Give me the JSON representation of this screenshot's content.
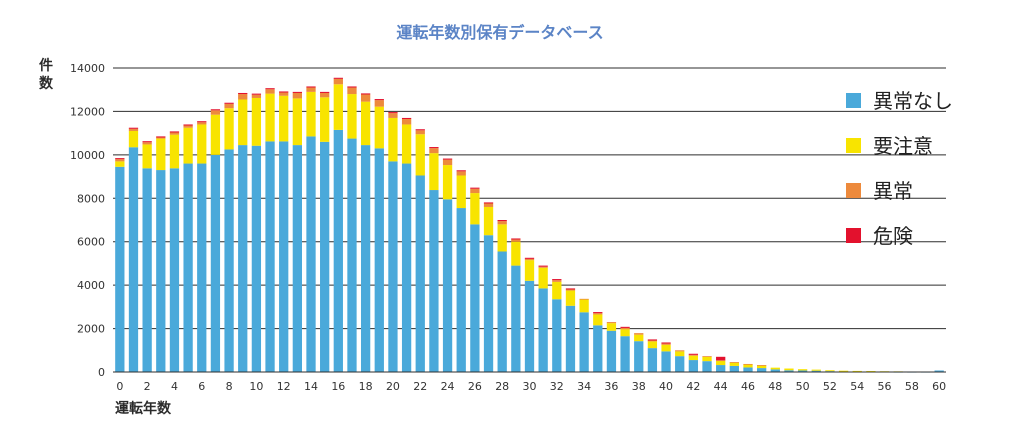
{
  "chart_data": {
    "type": "bar",
    "stacked": true,
    "title": "運転年数別保有データベース",
    "xlabel": "運転年数",
    "ylabel": "件数",
    "ylim": [
      0,
      14000
    ],
    "y_ticks": [
      0,
      2000,
      4000,
      6000,
      8000,
      10000,
      12000,
      14000
    ],
    "x_tick_labels": [
      0,
      2,
      4,
      6,
      8,
      10,
      12,
      14,
      16,
      18,
      20,
      22,
      24,
      26,
      28,
      30,
      32,
      34,
      36,
      38,
      40,
      42,
      44,
      46,
      48,
      50,
      52,
      54,
      56,
      58,
      60
    ],
    "grid": true,
    "legend_position": "right",
    "categories": [
      0,
      1,
      2,
      3,
      4,
      5,
      6,
      7,
      8,
      9,
      10,
      11,
      12,
      13,
      14,
      15,
      16,
      17,
      18,
      19,
      20,
      21,
      22,
      23,
      24,
      25,
      26,
      27,
      28,
      29,
      30,
      31,
      32,
      33,
      34,
      35,
      36,
      37,
      38,
      39,
      40,
      41,
      42,
      43,
      44,
      45,
      46,
      47,
      48,
      49,
      50,
      51,
      52,
      53,
      54,
      55,
      56,
      57,
      58,
      59,
      60
    ],
    "series": [
      {
        "name": "異常なし",
        "color": "#4aa9da",
        "values": [
          9450,
          10350,
          9380,
          9300,
          9380,
          9600,
          9600,
          10000,
          10250,
          10450,
          10420,
          10620,
          10620,
          10450,
          10850,
          10600,
          11150,
          10750,
          10450,
          10300,
          9700,
          9600,
          9050,
          8380,
          7950,
          7550,
          6800,
          6300,
          5550,
          4900,
          4200,
          3850,
          3350,
          3050,
          2750,
          2150,
          1900,
          1650,
          1420,
          1100,
          950,
          730,
          550,
          500,
          320,
          280,
          210,
          180,
          120,
          80,
          70,
          60,
          40,
          30,
          20,
          20,
          15,
          10,
          10,
          10,
          70
        ]
      },
      {
        "name": "要注意",
        "color": "#f8e400",
        "values": [
          250,
          750,
          1100,
          1450,
          1550,
          1650,
          1800,
          1850,
          1900,
          2100,
          2200,
          2200,
          2100,
          2150,
          2050,
          2050,
          2100,
          2050,
          2000,
          1920,
          2000,
          1800,
          1900,
          1700,
          1580,
          1500,
          1440,
          1300,
          1250,
          1100,
          950,
          950,
          800,
          700,
          600,
          500,
          350,
          320,
          300,
          310,
          300,
          220,
          200,
          200,
          200,
          150,
          140,
          120,
          80,
          80,
          60,
          50,
          40,
          30,
          30,
          25,
          20,
          20,
          10,
          10,
          0
        ]
      },
      {
        "name": "異常",
        "color": "#ed8a3c",
        "values": [
          100,
          100,
          100,
          50,
          100,
          100,
          100,
          200,
          200,
          250,
          150,
          200,
          150,
          250,
          200,
          200,
          250,
          300,
          330,
          300,
          220,
          250,
          180,
          230,
          250,
          190,
          200,
          160,
          150,
          100,
          60,
          50,
          80,
          50,
          20,
          60,
          50,
          60,
          70,
          40,
          60,
          50,
          40,
          30,
          20,
          30,
          20,
          20,
          0,
          0,
          0,
          0,
          0,
          0,
          0,
          0,
          0,
          0,
          0,
          0,
          0
        ]
      },
      {
        "name": "危険",
        "color": "#e3112d",
        "values": [
          50,
          50,
          50,
          50,
          50,
          50,
          50,
          50,
          50,
          50,
          50,
          50,
          50,
          50,
          50,
          50,
          50,
          50,
          50,
          50,
          50,
          50,
          50,
          50,
          50,
          50,
          50,
          50,
          50,
          50,
          50,
          50,
          50,
          50,
          0,
          50,
          0,
          50,
          0,
          50,
          50,
          0,
          50,
          0,
          160,
          0,
          0,
          0,
          0,
          0,
          0,
          0,
          0,
          0,
          0,
          0,
          0,
          0,
          0,
          0,
          0
        ]
      }
    ]
  }
}
